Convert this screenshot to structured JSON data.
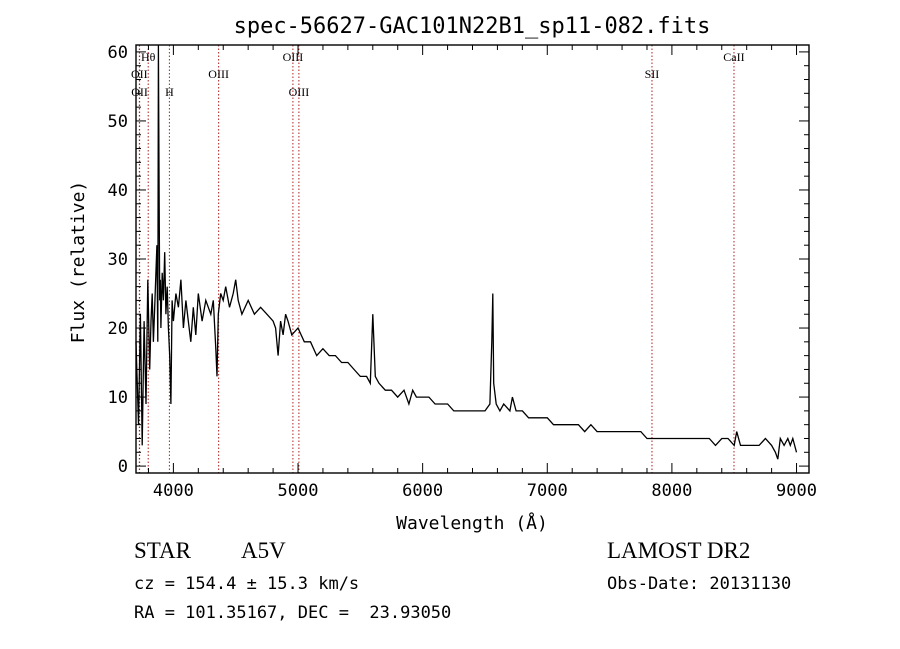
{
  "chart_data": {
    "type": "line",
    "title": "spec-56627-GAC101N22B1_sp11-082.fits",
    "xlabel": "Wavelength (Å)",
    "ylabel": "Flux (relative)",
    "xlim": [
      3700,
      9100
    ],
    "ylim": [
      -1,
      61
    ],
    "xticks": [
      4000,
      5000,
      6000,
      7000,
      8000,
      9000
    ],
    "yticks": [
      0,
      10,
      20,
      30,
      40,
      50,
      60
    ],
    "line_color": "#000000",
    "marker_color": "#b22222",
    "series": [
      {
        "x": [
          3700,
          3720,
          3735,
          3750,
          3765,
          3780,
          3795,
          3810,
          3820,
          3830,
          3840,
          3850,
          3860,
          3868,
          3875,
          3880,
          3885,
          3890,
          3895,
          3900,
          3910,
          3920,
          3930,
          3940,
          3950,
          3960,
          3970,
          3980,
          3990,
          4000,
          4020,
          4040,
          4060,
          4080,
          4100,
          4120,
          4140,
          4160,
          4180,
          4200,
          4230,
          4260,
          4280,
          4300,
          4320,
          4340,
          4350,
          4360,
          4380,
          4400,
          4420,
          4450,
          4480,
          4500,
          4520,
          4550,
          4600,
          4650,
          4700,
          4750,
          4800,
          4820,
          4840,
          4860,
          4880,
          4900,
          4920,
          4950,
          5000,
          5050,
          5100,
          5150,
          5200,
          5250,
          5300,
          5350,
          5400,
          5450,
          5500,
          5550,
          5580,
          5600,
          5620,
          5650,
          5700,
          5750,
          5800,
          5850,
          5890,
          5920,
          5950,
          6000,
          6050,
          6100,
          6150,
          6200,
          6250,
          6300,
          6350,
          6400,
          6450,
          6500,
          6540,
          6555,
          6563,
          6570,
          6590,
          6620,
          6650,
          6700,
          6720,
          6750,
          6800,
          6850,
          6900,
          6950,
          7000,
          7050,
          7100,
          7150,
          7200,
          7250,
          7300,
          7350,
          7400,
          7450,
          7500,
          7550,
          7600,
          7650,
          7700,
          7750,
          7800,
          7850,
          7900,
          7950,
          8000,
          8050,
          8100,
          8150,
          8200,
          8250,
          8300,
          8350,
          8400,
          8450,
          8500,
          8520,
          8550,
          8600,
          8650,
          8700,
          8750,
          8800,
          8830,
          8850,
          8870,
          8900,
          8930,
          8950,
          8970,
          9000
        ],
        "y": [
          18,
          6,
          22,
          3,
          21,
          9,
          27,
          14,
          21,
          25,
          18,
          23,
          28,
          32,
          18,
          61,
          40,
          24,
          27,
          20,
          28,
          24,
          31,
          22,
          26,
          20,
          16,
          9,
          24,
          21,
          25,
          23,
          27,
          20,
          24,
          21,
          18,
          23,
          19,
          25,
          21,
          24,
          23,
          22,
          24,
          17,
          13,
          22,
          25,
          24,
          26,
          23,
          25,
          27,
          24,
          22,
          24,
          22,
          23,
          22,
          21,
          20,
          16,
          21,
          19,
          22,
          21,
          19,
          20,
          18,
          18,
          16,
          17,
          16,
          16,
          15,
          15,
          14,
          13,
          13,
          12,
          22,
          13,
          12,
          11,
          11,
          10,
          11,
          9,
          11,
          10,
          10,
          10,
          9,
          9,
          9,
          8,
          8,
          8,
          8,
          8,
          8,
          9,
          18,
          25,
          12,
          9,
          8,
          9,
          8,
          10,
          8,
          8,
          7,
          7,
          7,
          7,
          6,
          6,
          6,
          6,
          6,
          5,
          6,
          5,
          5,
          5,
          5,
          5,
          5,
          5,
          5,
          4,
          4,
          4,
          4,
          4,
          4,
          4,
          4,
          4,
          4,
          4,
          3,
          4,
          4,
          3,
          5,
          3,
          3,
          3,
          3,
          4,
          3,
          2,
          1,
          4,
          3,
          4,
          3,
          4,
          2
        ]
      }
    ],
    "lines": [
      {
        "label": "Hθ",
        "x": 3798,
        "row": 1
      },
      {
        "label": "OII",
        "x": 3727,
        "row": 2
      },
      {
        "label": "OII",
        "x": 3729,
        "row": 3
      },
      {
        "label": "H",
        "x": 3968,
        "row": 3
      },
      {
        "label": "OIII",
        "x": 4363,
        "row": 2
      },
      {
        "label": "OIII",
        "x": 4959,
        "row": 1
      },
      {
        "label": "OIII",
        "x": 5007,
        "row": 3
      },
      {
        "label": "SII",
        "x": 7840,
        "row": 2
      },
      {
        "label": "CaII",
        "x": 8498,
        "row": 1
      }
    ]
  },
  "info": {
    "class": "STAR",
    "subclass": "A5V",
    "survey": "LAMOST DR2",
    "redshift": "cz = 154.4 ± 15.3 km/s",
    "obs_date": "Obs-Date: 20131130",
    "coords": "RA = 101.35167, DEC =  23.93050"
  }
}
